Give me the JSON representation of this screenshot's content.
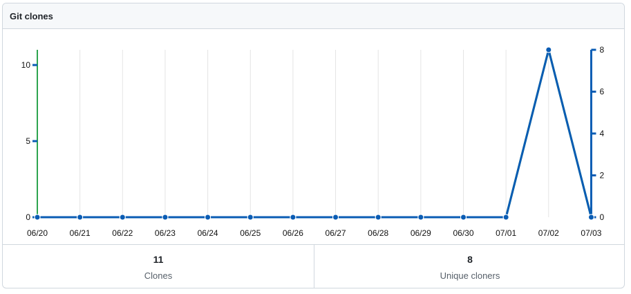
{
  "panel": {
    "title": "Git clones"
  },
  "stats": [
    {
      "value": "11",
      "label": "Clones"
    },
    {
      "value": "8",
      "label": "Unique cloners"
    }
  ],
  "chart_data": {
    "type": "line",
    "x": [
      "06/20",
      "06/21",
      "06/22",
      "06/23",
      "06/24",
      "06/25",
      "06/26",
      "06/27",
      "06/28",
      "06/29",
      "06/30",
      "07/01",
      "07/02",
      "07/03"
    ],
    "series": [
      {
        "name": "Clones",
        "axis": "left",
        "color": "#2da44e",
        "values": [
          0,
          0,
          0,
          0,
          0,
          0,
          0,
          0,
          0,
          0,
          0,
          0,
          11,
          0
        ]
      },
      {
        "name": "Unique cloners",
        "axis": "right",
        "color": "#0a5cb4",
        "values": [
          0,
          0,
          0,
          0,
          0,
          0,
          0,
          0,
          0,
          0,
          0,
          0,
          8,
          0
        ]
      }
    ],
    "y_left": {
      "min": 0,
      "max": 11,
      "ticks": [
        0,
        5,
        10
      ],
      "color": "#2da44e"
    },
    "y_right": {
      "min": 0,
      "max": 8,
      "ticks": [
        0,
        2,
        4,
        6,
        8
      ],
      "color": "#0a5cb4"
    },
    "grid": "vertical"
  }
}
